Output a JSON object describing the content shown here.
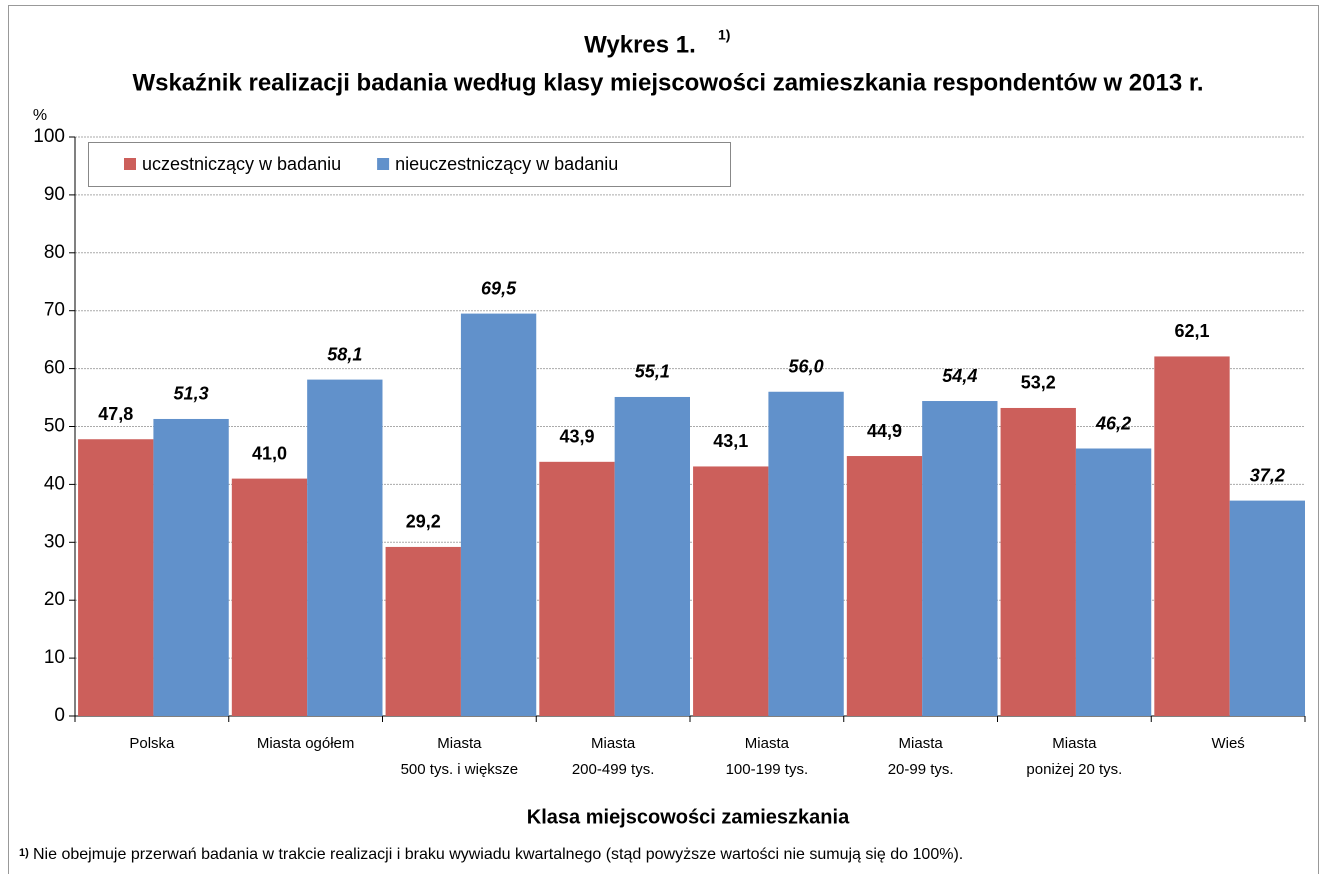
{
  "chart_data": {
    "type": "bar",
    "title": "Wykres  1.",
    "title_note": "1)",
    "subtitle": "Wskaźnik realizacji badania według klasy miejscowości zamieszkania respondentów w 2013 r.",
    "y_label": "%",
    "x_label": "Klasa miejscowości zamieszkania",
    "footnote_mark": "1)",
    "footnote": "Nie obejmuje przerwań badania w trakcie realizacji i braku wywiadu kwartalnego (stąd powyższe wartości nie sumują się do 100%).",
    "categories": [
      "Polska",
      "Miasta ogółem",
      "Miasta\n500 tys. i większe",
      "Miasta\n200-499 tys.",
      "Miasta\n100-199 tys.",
      "Miasta\n20-99 tys.",
      "Miasta\nponiżej 20 tys.",
      "Wieś"
    ],
    "series": [
      {
        "name": "uczestniczący w badaniu",
        "color": "#cc5f5b",
        "values": [
          47.8,
          41.0,
          29.2,
          43.9,
          43.1,
          44.9,
          53.2,
          62.1
        ],
        "value_labels": [
          "47,8",
          "41,0",
          "29,2",
          "43,9",
          "43,1",
          "44,9",
          "53,2",
          "62,1"
        ]
      },
      {
        "name": "nieuczestniczący w badaniu",
        "color": "#6191cb",
        "values": [
          51.3,
          58.1,
          69.5,
          55.1,
          56.0,
          54.4,
          46.2,
          37.2
        ],
        "value_labels": [
          "51,3",
          "58,1",
          "69,5",
          "55,1",
          "56,0",
          "54,4",
          "46,2",
          "37,2"
        ]
      }
    ],
    "ylim": [
      0,
      100
    ],
    "yticks": [
      0,
      10,
      20,
      30,
      40,
      50,
      60,
      70,
      80,
      90,
      100
    ],
    "grid": true,
    "legend": "top-left"
  }
}
